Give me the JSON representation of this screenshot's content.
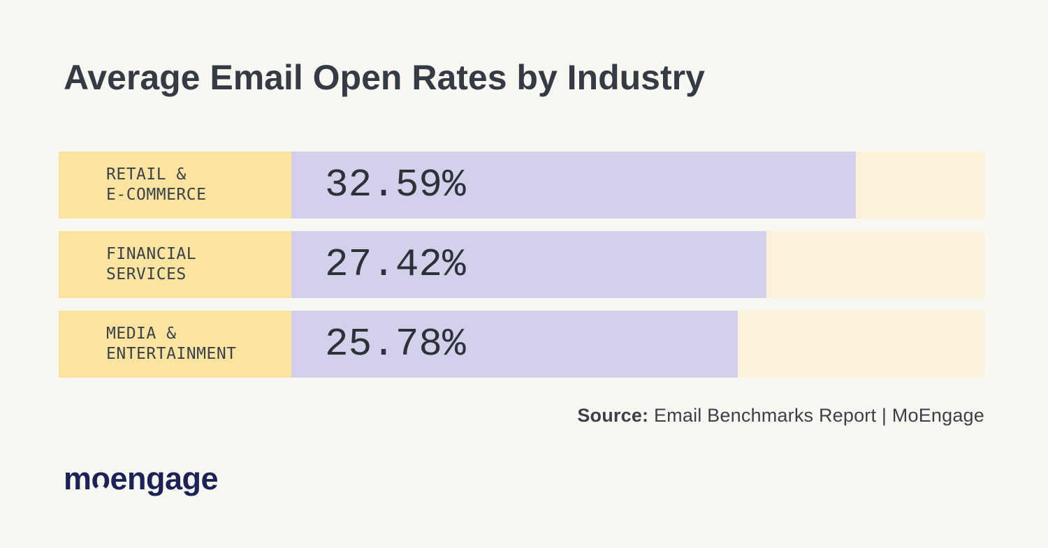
{
  "page": {
    "background_color": "#F8F7F2"
  },
  "chart_data": {
    "type": "bar",
    "orientation": "horizontal",
    "title": "Average Email Open Rates by Industry",
    "categories": [
      "RETAIL & E-COMMERCE",
      "FINANCIAL SERVICES",
      "MEDIA & ENTERTAINMENT"
    ],
    "values": [
      32.59,
      27.42,
      25.78
    ],
    "xlabel": "",
    "ylabel": "",
    "xlim": [
      0,
      40
    ],
    "grid": false,
    "legend": "none",
    "rows": [
      {
        "label_line1": "RETAIL &",
        "label_line2": "E-COMMERCE",
        "value": 32.59,
        "value_label": "32.59%"
      },
      {
        "label_line1": "FINANCIAL",
        "label_line2": "SERVICES",
        "value": 27.42,
        "value_label": "27.42%"
      },
      {
        "label_line1": "MEDIA &",
        "label_line2": "ENTERTAINMENT",
        "value": 25.78,
        "value_label": "25.78%"
      }
    ],
    "colors": {
      "label_bg": "#FBE3A0",
      "bar_fill": "#D3D0EB",
      "track_bg": "#FCF2D9",
      "title_text": "#353B44",
      "value_text": "#2D3138"
    }
  },
  "source": {
    "prefix": "Source:",
    "text": " Email Benchmarks Report | MoEngage"
  },
  "logo": {
    "text_pre": "m",
    "text_o": "o",
    "text_post": "engage",
    "color": "#1B2356"
  }
}
